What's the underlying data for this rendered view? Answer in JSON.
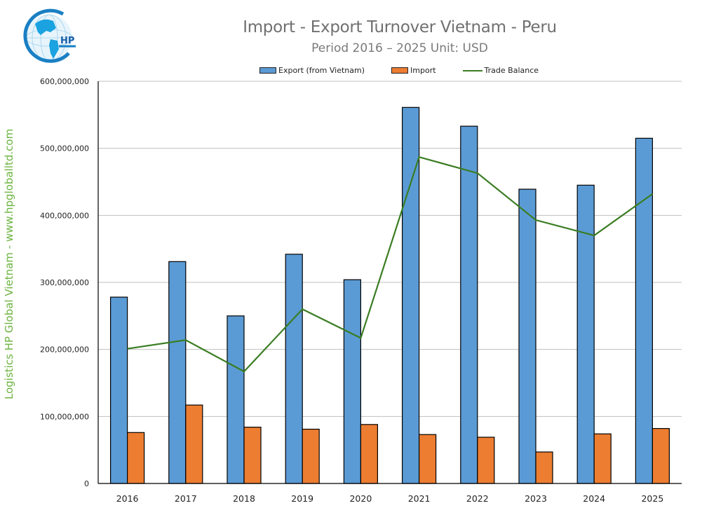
{
  "header": {
    "title": "Import - Export Turnover Vietnam - Peru",
    "subtitle": "Period 2016 – 2025  Unit: USD",
    "logo_text": "HP"
  },
  "watermark": "Logistics HP Global Vietnam - www.hpgloballtd.com",
  "legend": [
    {
      "label": "Export (from Vietnam)",
      "type": "bar",
      "color": "#5b9bd5"
    },
    {
      "label": "Import",
      "type": "bar",
      "color": "#ed7d31"
    },
    {
      "label": "Trade Balance",
      "type": "line",
      "color": "#3a7d22"
    }
  ],
  "chart_data": {
    "type": "bar",
    "title": "Import - Export Turnover Vietnam - Peru",
    "subtitle": "Period 2016 – 2025  Unit: USD",
    "xlabel": "",
    "ylabel": "",
    "categories": [
      "2016",
      "2017",
      "2018",
      "2019",
      "2020",
      "2021",
      "2022",
      "2023",
      "2024",
      "2025"
    ],
    "series": [
      {
        "name": "Export (from Vietnam)",
        "type": "bar",
        "color": "#5b9bd5",
        "values": [
          278000000,
          331000000,
          250000000,
          342000000,
          304000000,
          561000000,
          533000000,
          439000000,
          445000000,
          515000000
        ]
      },
      {
        "name": "Import",
        "type": "bar",
        "color": "#ed7d31",
        "values": [
          76000000,
          117000000,
          84000000,
          81000000,
          88000000,
          73000000,
          69000000,
          47000000,
          74000000,
          82000000
        ]
      },
      {
        "name": "Trade Balance",
        "type": "line",
        "color": "#3a7d22",
        "values": [
          201000000,
          214000000,
          167000000,
          260000000,
          217000000,
          487000000,
          463000000,
          393000000,
          370000000,
          432000000
        ]
      }
    ],
    "ylim": [
      0,
      600000000
    ],
    "yticks": [
      "0",
      "100,000,000",
      "200,000,000",
      "300,000,000",
      "400,000,000",
      "500,000,000",
      "600,000,000"
    ],
    "grid": true,
    "legend_position": "top"
  }
}
